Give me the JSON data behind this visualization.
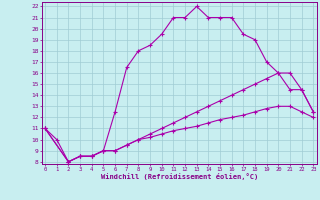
{
  "title": "",
  "xlabel": "Windchill (Refroidissement éolien,°C)",
  "x_ticks": [
    0,
    1,
    2,
    3,
    4,
    5,
    6,
    7,
    8,
    9,
    10,
    11,
    12,
    13,
    14,
    15,
    16,
    17,
    18,
    19,
    20,
    21,
    22,
    23
  ],
  "y_ticks": [
    8,
    9,
    10,
    11,
    12,
    13,
    14,
    15,
    16,
    17,
    18,
    19,
    20,
    21,
    22
  ],
  "xlim": [
    -0.3,
    23.3
  ],
  "ylim": [
    7.8,
    22.4
  ],
  "background_color": "#c8eef0",
  "grid_color": "#a0ccd4",
  "line_color": "#aa00aa",
  "line1_x": [
    0,
    1,
    2,
    3,
    4,
    5,
    6,
    7,
    8,
    9,
    10,
    11,
    12,
    13,
    14,
    15,
    16,
    17,
    18,
    19,
    20,
    21,
    22,
    23
  ],
  "line1_y": [
    11,
    10,
    8,
    8.5,
    8.5,
    9,
    12.5,
    16.5,
    18,
    18.5,
    19.5,
    21,
    21,
    22,
    21,
    21,
    21,
    19.5,
    19,
    17,
    16,
    14.5,
    14.5,
    12.5
  ],
  "line2_x": [
    0,
    2,
    3,
    4,
    5,
    6,
    7,
    8,
    9,
    10,
    11,
    12,
    13,
    14,
    15,
    16,
    17,
    18,
    19,
    20,
    21,
    22,
    23
  ],
  "line2_y": [
    11,
    8,
    8.5,
    8.5,
    9,
    9,
    9.5,
    10,
    10.5,
    11,
    11.5,
    12,
    12.5,
    13,
    13.5,
    14,
    14.5,
    15,
    15.5,
    16,
    16,
    14.5,
    12.5
  ],
  "line3_x": [
    0,
    2,
    3,
    4,
    5,
    6,
    7,
    8,
    9,
    10,
    11,
    12,
    13,
    14,
    15,
    16,
    17,
    18,
    19,
    20,
    21,
    22,
    23
  ],
  "line3_y": [
    11,
    8,
    8.5,
    8.5,
    9,
    9,
    9.5,
    10,
    10.2,
    10.5,
    10.8,
    11,
    11.2,
    11.5,
    11.8,
    12,
    12.2,
    12.5,
    12.8,
    13,
    13,
    12.5,
    12
  ]
}
